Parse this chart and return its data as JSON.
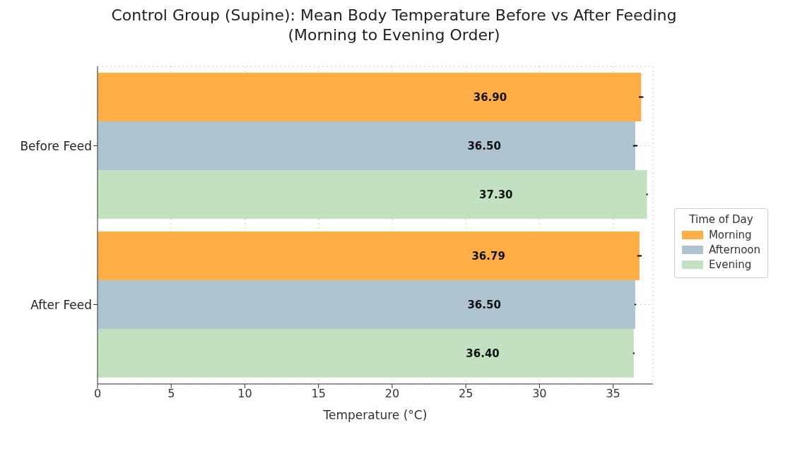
{
  "chart_data": {
    "type": "bar",
    "orientation": "horizontal",
    "title": "Control Group (Supine): Mean Body Temperature Before vs After Feeding",
    "subtitle": "(Morning to Evening Order)",
    "xlabel": "Temperature (°C)",
    "legend_title": "Time of Day",
    "categories": [
      "Before Feed",
      "After Feed"
    ],
    "series": [
      {
        "name": "Morning",
        "color": "#ffae45",
        "values": [
          36.9,
          36.79
        ],
        "value_labels": [
          "36.90",
          "36.79"
        ],
        "errors": [
          0.15,
          0.15
        ]
      },
      {
        "name": "Afternoon",
        "color": "#aec4d0",
        "values": [
          36.5,
          36.5
        ],
        "value_labels": [
          "36.50",
          "36.50"
        ],
        "errors": [
          0.15,
          0.05
        ]
      },
      {
        "name": "Evening",
        "color": "#c1e1c1",
        "values": [
          37.3,
          36.4
        ],
        "value_labels": [
          "37.30",
          "36.40"
        ],
        "errors": [
          0.05,
          0.05
        ]
      }
    ],
    "xlim": [
      0,
      37.7
    ],
    "xticks": [
      0,
      5,
      10,
      15,
      20,
      25,
      30,
      35
    ],
    "grid": true,
    "legend": "right"
  }
}
